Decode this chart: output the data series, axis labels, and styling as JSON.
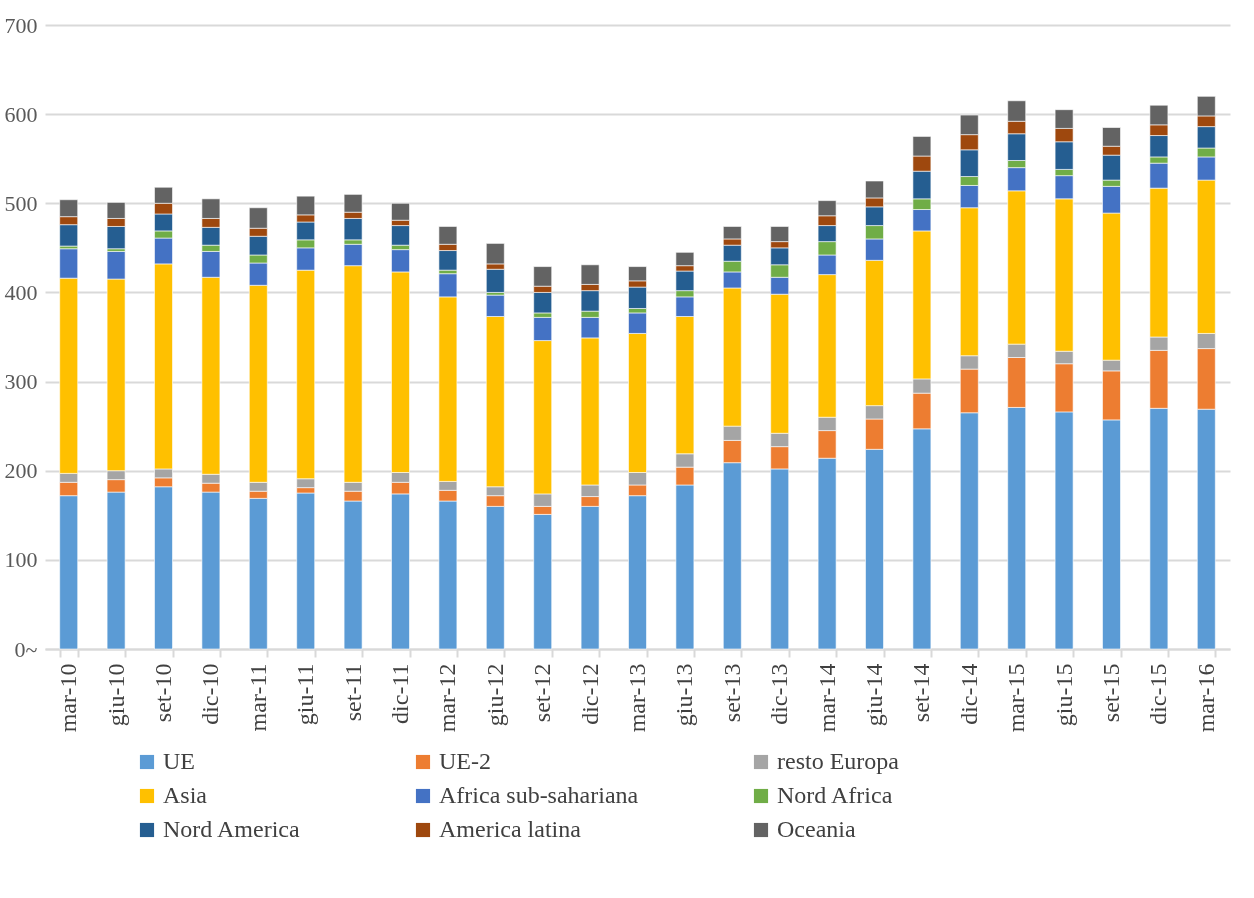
{
  "chart_data": {
    "type": "bar",
    "stacked": true,
    "categories": [
      "mar-10",
      "giu-10",
      "set-10",
      "dic-10",
      "mar-11",
      "giu-11",
      "set-11",
      "dic-11",
      "mar-12",
      "giu-12",
      "set-12",
      "dic-12",
      "mar-13",
      "giu-13",
      "set-13",
      "dic-13",
      "mar-14",
      "giu-14",
      "set-14",
      "dic-14",
      "mar-15",
      "giu-15",
      "set-15",
      "dic-15",
      "mar-16"
    ],
    "series": [
      {
        "name": "UE",
        "color": "#5b9bd5",
        "values": [
          172,
          176,
          182,
          176,
          169,
          175,
          166,
          174,
          166,
          160,
          151,
          160,
          172,
          184,
          209,
          202,
          214,
          224,
          247,
          265,
          271,
          266,
          257,
          270,
          269
        ]
      },
      {
        "name": "UE-2",
        "color": "#ed7d31",
        "values": [
          15,
          14,
          10,
          10,
          8,
          6,
          11,
          13,
          12,
          12,
          9,
          11,
          12,
          20,
          25,
          25,
          31,
          34,
          40,
          49,
          56,
          54,
          55,
          65,
          68
        ]
      },
      {
        "name": "resto Europa",
        "color": "#a5a5a5",
        "values": [
          10,
          10,
          10,
          10,
          10,
          10,
          10,
          11,
          10,
          10,
          14,
          13,
          14,
          15,
          16,
          15,
          15,
          15,
          16,
          15,
          15,
          14,
          12,
          15,
          17
        ]
      },
      {
        "name": "Asia",
        "color": "#ffc000",
        "values": [
          219,
          215,
          230,
          221,
          221,
          234,
          243,
          225,
          207,
          191,
          172,
          165,
          156,
          154,
          155,
          156,
          160,
          163,
          166,
          166,
          172,
          171,
          165,
          167,
          172
        ]
      },
      {
        "name": "Africa sub-sahariana",
        "color": "#4472c4",
        "values": [
          33,
          31,
          29,
          29,
          25,
          25,
          24,
          25,
          26,
          24,
          26,
          23,
          23,
          22,
          18,
          19,
          22,
          24,
          24,
          25,
          26,
          26,
          30,
          28,
          26
        ]
      },
      {
        "name": "Nord Africa",
        "color": "#70ad47",
        "values": [
          3,
          3,
          8,
          7,
          9,
          9,
          5,
          5,
          4,
          3,
          5,
          7,
          5,
          7,
          12,
          14,
          15,
          15,
          12,
          10,
          8,
          7,
          7,
          7,
          10
        ]
      },
      {
        "name": "Nord America",
        "color": "#255e91",
        "values": [
          24,
          25,
          19,
          20,
          21,
          20,
          24,
          22,
          22,
          26,
          23,
          23,
          24,
          22,
          18,
          19,
          18,
          21,
          31,
          30,
          30,
          31,
          28,
          24,
          24
        ]
      },
      {
        "name": "America latina",
        "color": "#9e480e",
        "values": [
          9,
          9,
          12,
          10,
          9,
          8,
          7,
          6,
          7,
          6,
          7,
          7,
          7,
          6,
          7,
          7,
          11,
          10,
          17,
          17,
          14,
          15,
          10,
          12,
          12
        ]
      },
      {
        "name": "Oceania",
        "color": "#636363",
        "values": [
          19,
          18,
          18,
          22,
          23,
          21,
          20,
          19,
          20,
          23,
          22,
          22,
          16,
          15,
          14,
          17,
          17,
          19,
          22,
          22,
          23,
          21,
          21,
          22,
          22
        ]
      }
    ],
    "ylim": [
      0,
      700
    ],
    "yticks": [
      {
        "value": 0,
        "label": "0~"
      },
      100,
      200,
      300,
      400,
      500,
      600,
      700
    ],
    "grid": "y",
    "legend": "bottom"
  }
}
